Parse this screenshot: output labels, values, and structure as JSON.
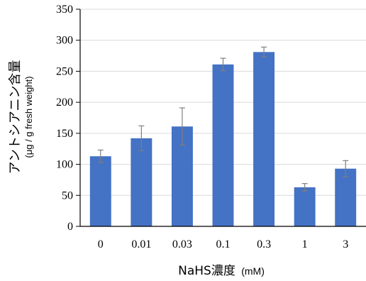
{
  "chart_data": {
    "type": "bar",
    "categories": [
      "0",
      "0.01",
      "0.03",
      "0.1",
      "0.3",
      "1",
      "3"
    ],
    "series": [
      {
        "values": [
          113,
          142,
          161,
          261,
          281,
          63,
          93
        ],
        "error": [
          10,
          20,
          30,
          10,
          8,
          6,
          13
        ]
      }
    ],
    "xlabel": {
      "main": "NaHS濃度",
      "unit": "(mM)"
    },
    "ylabel": {
      "main": "アントシアニン含量",
      "unit": "(μg / g fresh weight)"
    },
    "ylim": [
      0,
      350
    ],
    "yticks": [
      0,
      50,
      100,
      150,
      200,
      250,
      300,
      350
    ],
    "grid": true,
    "legend": "none",
    "colors": {
      "bar": "#4472c4",
      "error": "#7f7f7f",
      "grid": "#d9d9d9",
      "axis": "#000000"
    }
  }
}
